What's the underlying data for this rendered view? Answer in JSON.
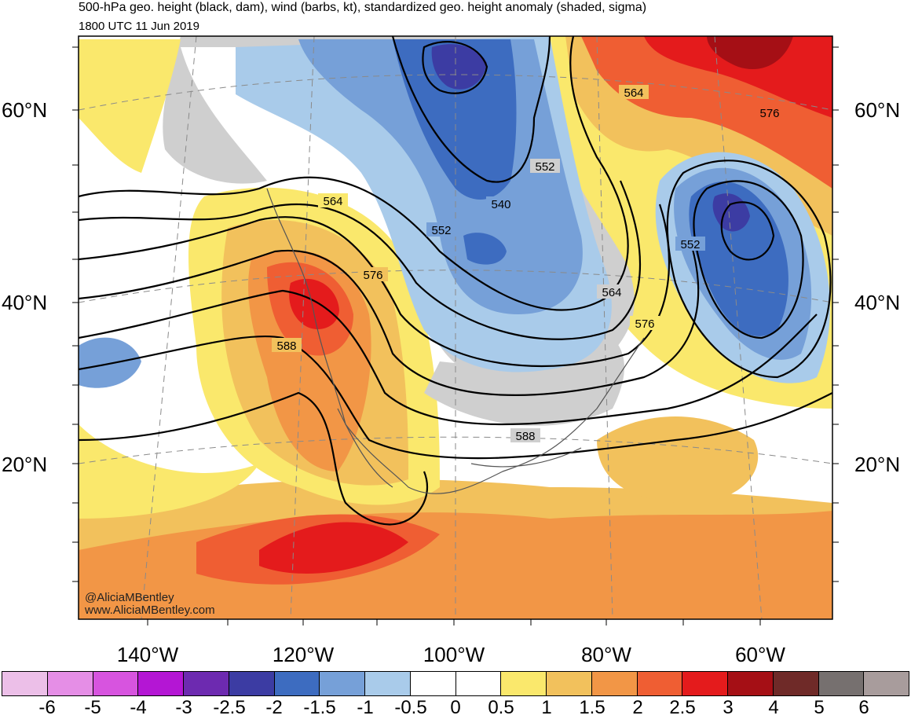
{
  "header": {
    "title": "500-hPa geo. height (black, dam), wind (barbs, kt), standardized geo. height anomaly (shaded, sigma)",
    "valid_time": "1800 UTC 11 Jun 2019"
  },
  "map": {
    "latitude_labels": [
      "60°N",
      "40°N",
      "20°N"
    ],
    "longitude_labels": [
      "140°W",
      "120°W",
      "100°W",
      "80°W",
      "60°W"
    ],
    "contour_labels": [
      "564",
      "576",
      "588",
      "552",
      "540",
      "552",
      "564",
      "576",
      "588",
      "564",
      "576",
      "552"
    ],
    "credits": [
      "@AliciaMBentley",
      "www.AliciaMBentley.com"
    ]
  },
  "colorbar": {
    "labels": [
      "-6",
      "-5",
      "-4",
      "-3",
      "-2.5",
      "-2",
      "-1.5",
      "-1",
      "-0.5",
      "0",
      "0.5",
      "1",
      "1.5",
      "2",
      "2.5",
      "3",
      "4",
      "5",
      "6"
    ],
    "colors": [
      "#ecbfe8",
      "#e58ee6",
      "#d754df",
      "#b416d4",
      "#6d2ab0",
      "#3c3ca3",
      "#3d6cc0",
      "#76a0d8",
      "#a9cbea",
      "#ffffff",
      "#ffffff",
      "#fae86c",
      "#f2c15c",
      "#f29646",
      "#ef5e33",
      "#e41b1c",
      "#a50f15",
      "#6f2a28",
      "#76706f",
      "#a89c9c"
    ]
  },
  "colors": {
    "negative_anomaly": "#3d6cc0",
    "positive_anomaly": "#ef5e33",
    "land_mask": "#cfcfcf",
    "contour": "#000000"
  }
}
